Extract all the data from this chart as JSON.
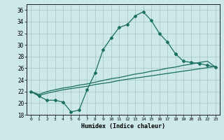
{
  "xlabel": "Humidex (Indice chaleur)",
  "background_color": "#cce8e8",
  "grid_color": "#aacaca",
  "line_color": "#1a7060",
  "xlim": [
    -0.5,
    23.5
  ],
  "ylim": [
    18,
    37
  ],
  "xticks": [
    0,
    1,
    2,
    3,
    4,
    5,
    6,
    7,
    8,
    9,
    10,
    11,
    12,
    13,
    14,
    15,
    16,
    17,
    18,
    19,
    20,
    21,
    22,
    23
  ],
  "yticks": [
    18,
    20,
    22,
    24,
    26,
    28,
    30,
    32,
    34,
    36
  ],
  "series1_x": [
    0,
    1,
    2,
    3,
    4,
    5,
    6,
    7,
    8,
    9,
    10,
    11,
    12,
    13,
    14,
    15,
    16,
    17,
    18
  ],
  "series1_y": [
    22,
    21.2,
    20.5,
    20.5,
    20.2,
    18.5,
    18.8,
    22.3,
    25.2,
    29.2,
    31.2,
    33.0,
    33.5,
    35.0,
    35.7,
    34.2,
    32.0,
    30.5,
    28.5
  ],
  "series2_x": [
    0,
    1,
    2,
    3,
    4,
    5,
    6,
    7,
    8,
    9,
    10,
    11,
    12,
    13,
    14,
    15,
    16,
    17,
    18,
    19,
    20,
    21,
    22,
    23
  ],
  "series2_y": [
    22,
    21.3,
    21.7,
    22.0,
    22.3,
    22.5,
    22.7,
    22.9,
    23.2,
    23.4,
    23.6,
    23.9,
    24.1,
    24.3,
    24.5,
    24.7,
    24.9,
    25.1,
    25.3,
    25.5,
    25.7,
    25.9,
    26.1,
    26.3
  ],
  "series3_x": [
    0,
    1,
    2,
    3,
    4,
    5,
    6,
    7,
    8,
    9,
    10,
    11,
    12,
    13,
    14,
    15,
    16,
    17,
    18,
    19,
    20,
    21,
    22,
    23
  ],
  "series3_y": [
    22,
    21.5,
    22.0,
    22.3,
    22.6,
    22.8,
    23.1,
    23.3,
    23.6,
    23.9,
    24.2,
    24.4,
    24.7,
    25.0,
    25.2,
    25.5,
    25.7,
    26.0,
    26.2,
    26.5,
    26.7,
    27.0,
    27.2,
    26.2
  ],
  "series4_x": [
    18,
    19,
    20,
    21,
    22,
    23
  ],
  "series4_y": [
    28.5,
    27.2,
    27.0,
    26.8,
    26.5,
    26.2
  ]
}
